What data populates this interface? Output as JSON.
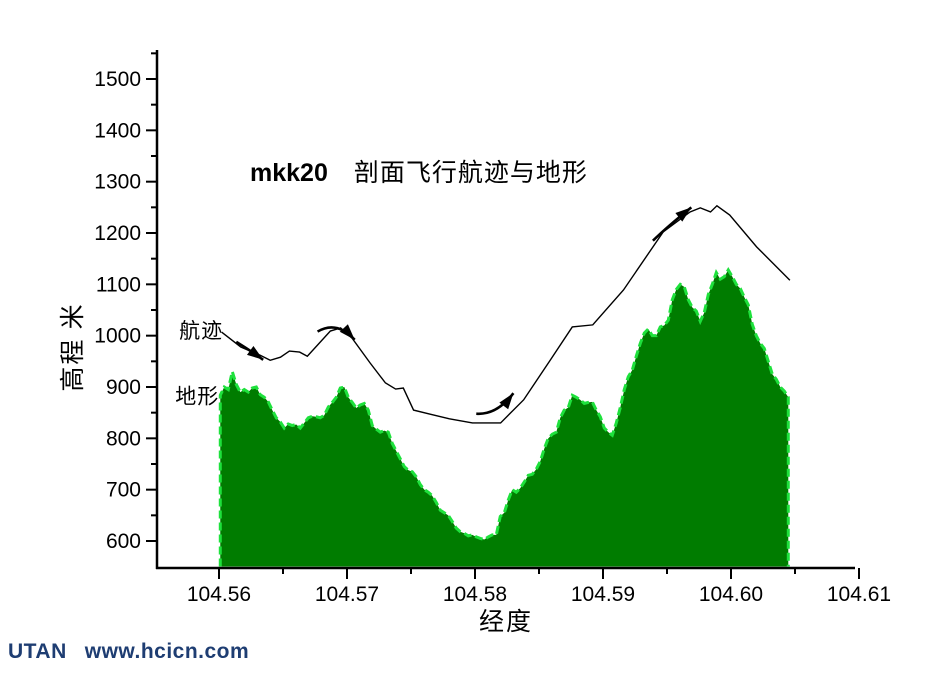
{
  "page": {
    "background": "#ffffff"
  },
  "title": {
    "run_id": "mkk20",
    "text": "剖面飞行航迹与地形"
  },
  "footer": {
    "brand": "UTAN",
    "url": "www.hcicn.com",
    "color": "#1e3d72"
  },
  "colors": {
    "terrain_fill": "#007C00",
    "terrain_edge": "#1EE13C",
    "trajectory_line": "#000000",
    "axis": "#000000"
  },
  "chart_data": {
    "type": "area",
    "title": "mkk20 剖面飞行航迹与地形",
    "xlabel": "经度",
    "ylabel": "高程 米",
    "xlim": [
      104.5552,
      104.61
    ],
    "ylim": [
      549,
      1553
    ],
    "grid": false,
    "legend": "inline-labels",
    "x_ticks": [
      104.56,
      104.57,
      104.58,
      104.59,
      104.6,
      104.61
    ],
    "x_tick_labels": [
      "104.56",
      "104.57",
      "104.58",
      "104.59",
      "104.60",
      "104.61"
    ],
    "x_minor_ticks": [
      104.565,
      104.575,
      104.585,
      104.595,
      104.605
    ],
    "y_ticks": [
      600,
      700,
      800,
      900,
      1000,
      1100,
      1200,
      1300,
      1400,
      1500
    ],
    "y_tick_labels": [
      "600",
      "700",
      "800",
      "900",
      "1000",
      "1100",
      "1200",
      "1300",
      "1400",
      "1500"
    ],
    "y_minor_ticks": [
      650,
      750,
      850,
      950,
      1050,
      1150,
      1250,
      1350,
      1450,
      1550
    ],
    "series": [
      {
        "name": "地形",
        "type": "area",
        "fill": "#007C00",
        "edge": "#1EE13C",
        "x_start": 104.5601,
        "x_step": 0.0003125,
        "values": [
          884,
          900,
          895,
          930,
          905,
          890,
          895,
          890,
          898,
          900,
          885,
          880,
          871,
          855,
          840,
          832,
          820,
          828,
          825,
          827,
          820,
          830,
          840,
          843,
          842,
          840,
          845,
          861,
          870,
          880,
          898,
          900,
          880,
          870,
          859,
          865,
          868,
          855,
          825,
          818,
          812,
          815,
          812,
          790,
          775,
          760,
          745,
          738,
          735,
          725,
          710,
          700,
          695,
          688,
          675,
          660,
          655,
          650,
          638,
          625,
          618,
          615,
          610,
          612,
          608,
          605,
          603,
          608,
          612,
          612,
          648,
          655,
          680,
          700,
          695,
          703,
          715,
          728,
          730,
          740,
          755,
          780,
          800,
          808,
          812,
          840,
          855,
          860,
          884,
          880,
          875,
          868,
          870,
          871,
          855,
          842,
          820,
          812,
          806,
          830,
          860,
          895,
          920,
          933,
          960,
          985,
          1005,
          1013,
          1000,
          1000,
          1017,
          1020,
          1030,
          1070,
          1090,
          1100,
          1095,
          1070,
          1055,
          1048,
          1028,
          1045,
          1080,
          1100,
          1123,
          1110,
          1115,
          1128,
          1115,
          1100,
          1092,
          1075,
          1060,
          1022,
          1000,
          985,
          975,
          950,
          925,
          915,
          900,
          892,
          880
        ]
      },
      {
        "name": "航迹",
        "type": "line",
        "color": "#000000",
        "points": [
          [
            104.5602,
            1007
          ],
          [
            104.5617,
            978
          ],
          [
            104.5632,
            962
          ],
          [
            104.564,
            952
          ],
          [
            104.5648,
            958
          ],
          [
            104.5655,
            970
          ],
          [
            104.5663,
            968
          ],
          [
            104.5669,
            960
          ],
          [
            104.5687,
            1009
          ],
          [
            104.5695,
            1015
          ],
          [
            104.5704,
            995
          ],
          [
            104.5718,
            947
          ],
          [
            104.573,
            908
          ],
          [
            104.5738,
            896
          ],
          [
            104.5744,
            898
          ],
          [
            104.5752,
            855
          ],
          [
            104.5765,
            847
          ],
          [
            104.578,
            838
          ],
          [
            104.5798,
            830
          ],
          [
            104.582,
            830
          ],
          [
            104.5838,
            875
          ],
          [
            104.5859,
            953
          ],
          [
            104.5876,
            1017
          ],
          [
            104.5892,
            1021
          ],
          [
            104.5916,
            1089
          ],
          [
            104.5947,
            1202
          ],
          [
            104.5968,
            1241
          ],
          [
            104.5976,
            1249
          ],
          [
            104.5984,
            1241
          ],
          [
            104.5989,
            1253
          ],
          [
            104.5999,
            1235
          ],
          [
            104.602,
            1173
          ],
          [
            104.6046,
            1108
          ]
        ]
      }
    ],
    "annotations": {
      "series_labels": [
        {
          "text": "航迹",
          "lon": 104.5586,
          "alt": 1011
        },
        {
          "text": "地形",
          "lon": 104.5583,
          "alt": 883
        }
      ],
      "arrows": [
        {
          "tail": [
            104.56135,
            988
          ],
          "ctrl": [
            104.5624,
            972
          ],
          "head": [
            104.56345,
            953
          ]
        },
        {
          "tail": [
            104.5677,
            1008
          ],
          "ctrl": [
            104.5692,
            1030
          ],
          "head": [
            104.5706,
            992
          ]
        },
        {
          "tail": [
            104.5801,
            848
          ],
          "ctrl": [
            104.5817,
            845
          ],
          "head": [
            104.583,
            888
          ]
        },
        {
          "tail": [
            104.5939,
            1185
          ],
          "ctrl": [
            104.595,
            1212
          ],
          "head": [
            104.5969,
            1250
          ]
        }
      ]
    }
  }
}
